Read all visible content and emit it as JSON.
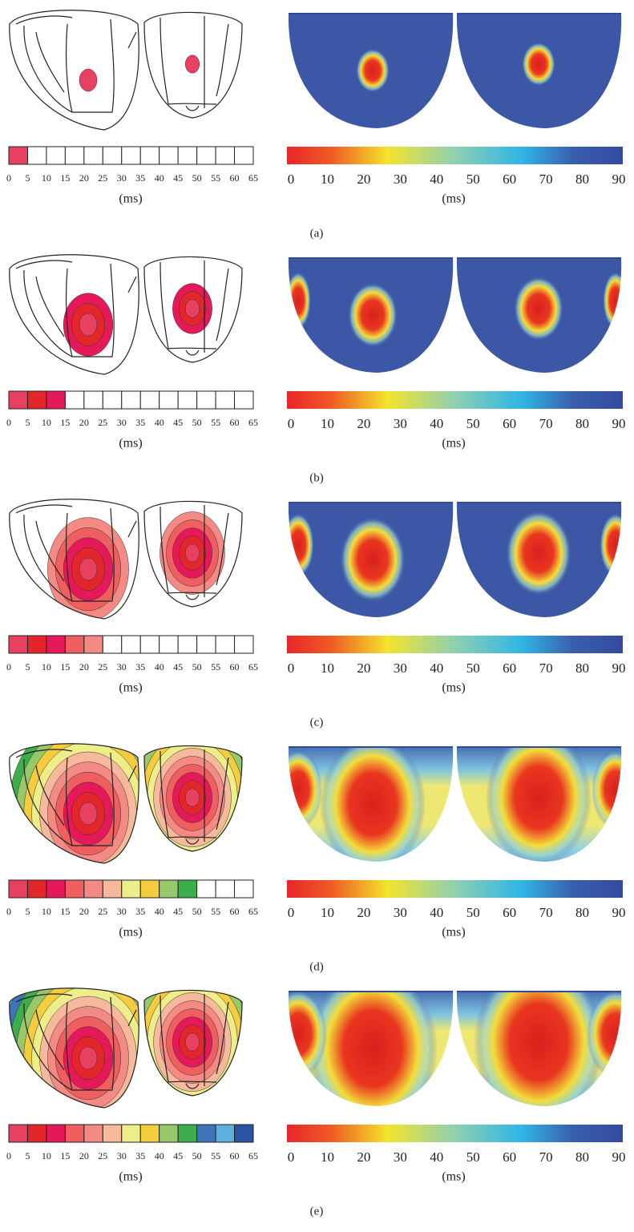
{
  "panels": [
    {
      "label": "(a)",
      "left_scale": {
        "ticks": [
          0,
          5,
          10,
          15,
          20,
          25,
          30,
          35,
          40,
          45,
          50,
          55,
          60,
          65
        ],
        "unit": "(ms)",
        "colors": [
          "#e84060",
          "#ffffff",
          "#ffffff",
          "#ffffff",
          "#ffffff",
          "#ffffff",
          "#ffffff",
          "#ffffff",
          "#ffffff",
          "#ffffff",
          "#ffffff",
          "#ffffff",
          "#ffffff"
        ]
      },
      "right_scale": {
        "ticks": [
          0,
          10,
          20,
          30,
          40,
          50,
          60,
          70,
          80,
          90
        ],
        "unit": "(ms)"
      }
    },
    {
      "label": "(b)",
      "left_scale": {
        "ticks": [
          0,
          5,
          10,
          15,
          20,
          25,
          30,
          35,
          40,
          45,
          50,
          55,
          60,
          65
        ],
        "unit": "(ms)",
        "colors": [
          "#e84060",
          "#e4262a",
          "#e5185a",
          "#ffffff",
          "#ffffff",
          "#ffffff",
          "#ffffff",
          "#ffffff",
          "#ffffff",
          "#ffffff",
          "#ffffff",
          "#ffffff",
          "#ffffff"
        ]
      },
      "right_scale": {
        "ticks": [
          0,
          10,
          20,
          30,
          40,
          50,
          60,
          70,
          80,
          90
        ],
        "unit": "(ms)"
      }
    },
    {
      "label": "(c)",
      "left_scale": {
        "ticks": [
          0,
          5,
          10,
          15,
          20,
          25,
          30,
          35,
          40,
          45,
          50,
          55,
          60,
          65
        ],
        "unit": "(ms)",
        "colors": [
          "#e84060",
          "#e4262a",
          "#e5185a",
          "#ef5f5f",
          "#f48a84",
          "#ffffff",
          "#ffffff",
          "#ffffff",
          "#ffffff",
          "#ffffff",
          "#ffffff",
          "#ffffff",
          "#ffffff"
        ]
      },
      "right_scale": {
        "ticks": [
          0,
          10,
          20,
          30,
          40,
          50,
          60,
          70,
          80,
          90
        ],
        "unit": "(ms)"
      }
    },
    {
      "label": "(d)",
      "left_scale": {
        "ticks": [
          0,
          5,
          10,
          15,
          20,
          25,
          30,
          35,
          40,
          45,
          50,
          55,
          60,
          65
        ],
        "unit": "(ms)",
        "colors": [
          "#e84060",
          "#e4262a",
          "#e5185a",
          "#ef5f5f",
          "#f48a84",
          "#f7b99b",
          "#eded8a",
          "#f4cc3e",
          "#97c96a",
          "#3cae4c",
          "#ffffff",
          "#ffffff",
          "#ffffff"
        ]
      },
      "right_scale": {
        "ticks": [
          0,
          10,
          20,
          30,
          40,
          50,
          60,
          70,
          80,
          90
        ],
        "unit": "(ms)"
      }
    },
    {
      "label": "(e)",
      "left_scale": {
        "ticks": [
          0,
          5,
          10,
          15,
          20,
          25,
          30,
          35,
          40,
          45,
          50,
          55,
          60,
          65
        ],
        "unit": "(ms)",
        "colors": [
          "#e84060",
          "#e4262a",
          "#e5185a",
          "#ef5f5f",
          "#f48a84",
          "#f7b99b",
          "#eded8a",
          "#f4cc3e",
          "#97c96a",
          "#3cae4c",
          "#3f74b8",
          "#5fb0df",
          "#2a54a2"
        ]
      },
      "right_scale": {
        "ticks": [
          0,
          10,
          20,
          30,
          40,
          50,
          60,
          70,
          80,
          90
        ],
        "unit": "(ms)"
      }
    }
  ]
}
